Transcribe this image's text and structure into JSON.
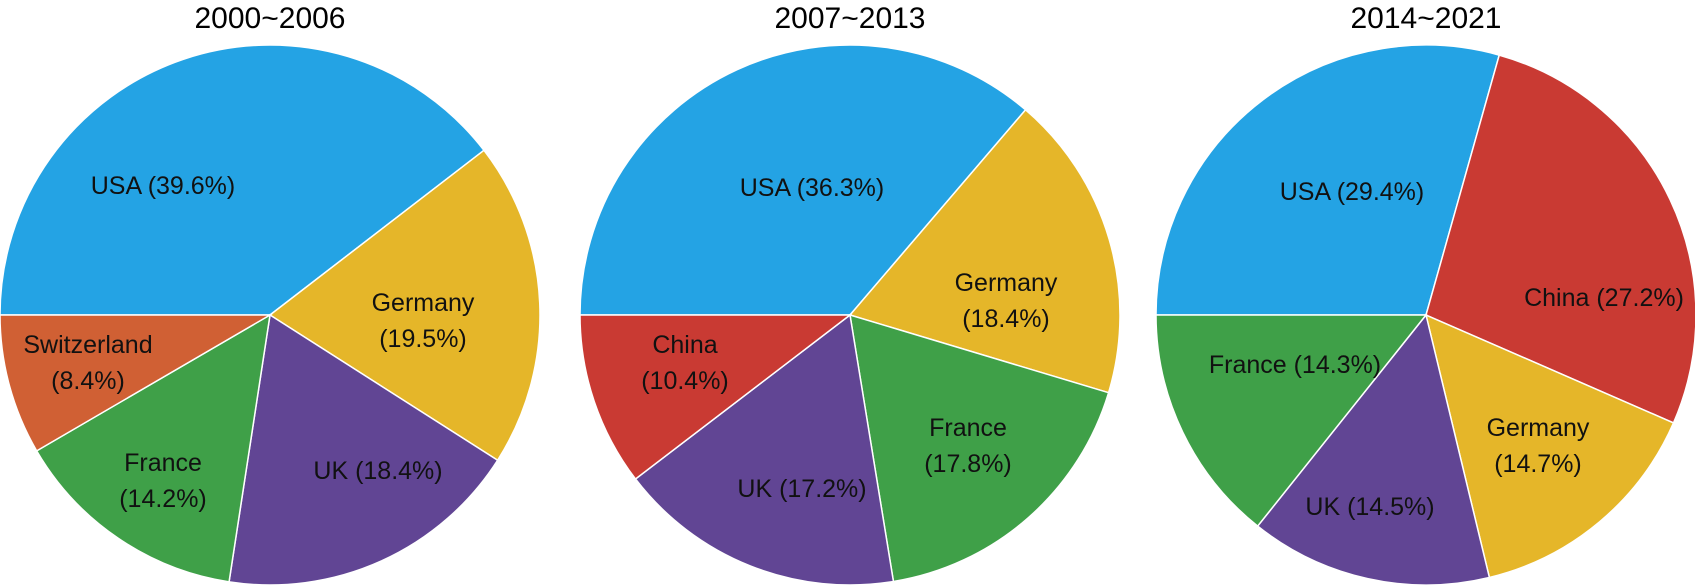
{
  "colors": {
    "USA": "#24A3E4",
    "Germany": "#E5B629",
    "UK": "#614594",
    "France": "#3FA048",
    "Switzerland": "#D06034",
    "China": "#C93A33"
  },
  "chart_data": [
    {
      "type": "pie",
      "title": "2000~2006",
      "slices": [
        {
          "name": "USA",
          "value": 39.6,
          "label_lines": [
            "USA (39.6%)"
          ]
        },
        {
          "name": "Germany",
          "value": 19.5,
          "label_lines": [
            "Germany",
            "(19.5%)"
          ]
        },
        {
          "name": "UK",
          "value": 18.4,
          "label_lines": [
            "UK (18.4%)"
          ]
        },
        {
          "name": "France",
          "value": 14.2,
          "label_lines": [
            "France",
            "(14.2%)"
          ]
        },
        {
          "name": "Switzerland",
          "value": 8.4,
          "label_lines": [
            "Switzerland",
            "(8.4%)"
          ]
        }
      ]
    },
    {
      "type": "pie",
      "title": "2007~2013",
      "slices": [
        {
          "name": "USA",
          "value": 36.3,
          "label_lines": [
            "USA (36.3%)"
          ]
        },
        {
          "name": "Germany",
          "value": 18.4,
          "label_lines": [
            "Germany",
            "(18.4%)"
          ]
        },
        {
          "name": "France",
          "value": 17.8,
          "label_lines": [
            "France",
            "(17.8%)"
          ]
        },
        {
          "name": "UK",
          "value": 17.2,
          "label_lines": [
            "UK (17.2%)"
          ]
        },
        {
          "name": "China",
          "value": 10.4,
          "label_lines": [
            "China",
            "(10.4%)"
          ]
        }
      ]
    },
    {
      "type": "pie",
      "title": "2014~2021",
      "slices": [
        {
          "name": "USA",
          "value": 29.4,
          "label_lines": [
            "USA (29.4%)"
          ]
        },
        {
          "name": "China",
          "value": 27.2,
          "label_lines": [
            "China (27.2%)"
          ]
        },
        {
          "name": "Germany",
          "value": 14.7,
          "label_lines": [
            "Germany",
            "(14.7%)"
          ]
        },
        {
          "name": "UK",
          "value": 14.5,
          "label_lines": [
            "UK (14.5%)"
          ]
        },
        {
          "name": "France",
          "value": 14.3,
          "label_lines": [
            "France (14.3%)"
          ]
        }
      ]
    }
  ]
}
